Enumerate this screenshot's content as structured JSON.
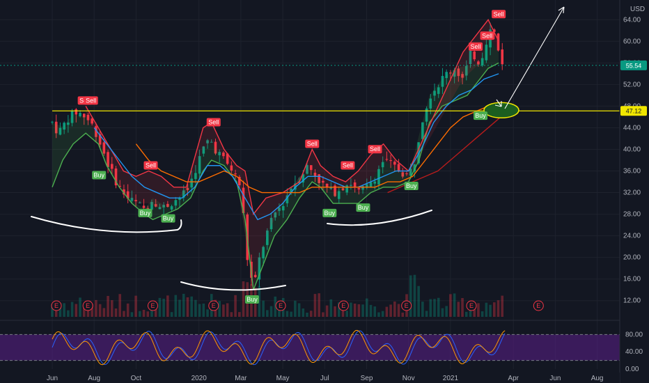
{
  "chart_data": {
    "type": "candlestick",
    "currency": "USD",
    "price_ticks": [
      12,
      16,
      20,
      24,
      28,
      32,
      36,
      40,
      44,
      48,
      52,
      56,
      60,
      64
    ],
    "price_tick_labels": [
      "12.00",
      "16.00",
      "20.00",
      "24.00",
      "28.00",
      "32.00",
      "36.00",
      "40.00",
      "44.00",
      "48.00",
      "52.00",
      "56.00",
      "60.00",
      "64.00"
    ],
    "ylim": [
      9,
      67
    ],
    "time_ticks": [
      "Jun",
      "Aug",
      "Oct",
      "2020",
      "Mar",
      "May",
      "Jul",
      "Sep",
      "Nov",
      "2021",
      "Apr",
      "Jun",
      "Aug"
    ],
    "time_ticks_month_index": [
      0,
      2,
      4,
      7,
      9,
      11,
      13,
      15,
      17,
      19,
      22,
      24,
      26
    ],
    "current_price": 55.54,
    "current_price_label": "55.54",
    "support_level": 47.12,
    "support_label": "47.12",
    "price_path": [
      [
        0,
        45
      ],
      [
        0.3,
        43
      ],
      [
        0.8,
        46
      ],
      [
        1.2,
        47
      ],
      [
        1.6,
        46
      ],
      [
        2,
        44
      ],
      [
        2.4,
        40
      ],
      [
        2.8,
        36
      ],
      [
        3.2,
        33
      ],
      [
        3.6,
        31
      ],
      [
        4,
        30
      ],
      [
        4.4,
        29
      ],
      [
        4.8,
        31
      ],
      [
        5.2,
        29
      ],
      [
        5.6,
        30
      ],
      [
        6,
        31
      ],
      [
        6.4,
        32
      ],
      [
        6.8,
        36
      ],
      [
        7.2,
        40
      ],
      [
        7.5,
        42
      ],
      [
        7.8,
        40
      ],
      [
        8.2,
        38
      ],
      [
        8.6,
        36
      ],
      [
        9,
        33
      ],
      [
        9.3,
        20
      ],
      [
        9.6,
        14
      ],
      [
        9.9,
        20
      ],
      [
        10.2,
        24
      ],
      [
        10.6,
        28
      ],
      [
        11,
        30
      ],
      [
        11.4,
        33
      ],
      [
        11.8,
        35
      ],
      [
        12.2,
        37
      ],
      [
        12.6,
        35
      ],
      [
        13,
        33
      ],
      [
        13.4,
        32
      ],
      [
        13.8,
        33
      ],
      [
        14.2,
        34
      ],
      [
        14.6,
        32
      ],
      [
        15,
        33
      ],
      [
        15.4,
        35
      ],
      [
        15.8,
        38
      ],
      [
        16.2,
        37
      ],
      [
        16.6,
        36
      ],
      [
        17,
        35
      ],
      [
        17.3,
        38
      ],
      [
        17.6,
        45
      ],
      [
        18,
        50
      ],
      [
        18.4,
        52
      ],
      [
        18.8,
        54
      ],
      [
        19.2,
        55
      ],
      [
        19.6,
        53
      ],
      [
        20,
        58
      ],
      [
        20.4,
        56
      ],
      [
        20.7,
        60
      ],
      [
        21,
        63
      ],
      [
        21.3,
        58
      ],
      [
        21.6,
        55
      ]
    ],
    "series": [
      {
        "name": "",
        "color": "#4caf50",
        "points": [
          [
            0,
            33
          ],
          [
            0.5,
            38
          ],
          [
            1,
            41
          ],
          [
            1.6,
            43
          ],
          [
            2.2,
            41
          ],
          [
            2.6,
            37
          ],
          [
            3.2,
            33
          ],
          [
            3.8,
            30
          ],
          [
            4.4,
            28
          ],
          [
            4.8,
            27
          ],
          [
            5.4,
            28
          ],
          [
            6,
            29
          ],
          [
            6.6,
            31
          ],
          [
            7.2,
            36
          ],
          [
            7.6,
            38
          ],
          [
            8.2,
            37
          ],
          [
            8.8,
            34
          ],
          [
            9.2,
            27
          ],
          [
            9.6,
            14
          ],
          [
            10,
            18
          ],
          [
            10.6,
            24
          ],
          [
            11.2,
            27
          ],
          [
            11.8,
            31
          ],
          [
            12.4,
            34
          ],
          [
            12.8,
            33
          ],
          [
            13.4,
            30
          ],
          [
            14,
            30
          ],
          [
            14.6,
            30
          ],
          [
            15.2,
            32
          ],
          [
            15.8,
            33
          ],
          [
            16.4,
            33
          ],
          [
            17,
            34
          ],
          [
            17.5,
            38
          ],
          [
            18,
            45
          ],
          [
            18.6,
            48
          ],
          [
            19.2,
            49
          ],
          [
            19.8,
            50
          ],
          [
            20.4,
            53
          ],
          [
            20.8,
            55
          ],
          [
            21.3,
            56
          ]
        ]
      },
      {
        "name": "",
        "color": "#f23645",
        "points": [
          [
            1.6,
            48
          ],
          [
            2.2,
            44
          ],
          [
            2.8,
            40
          ],
          [
            3.4,
            36
          ],
          [
            4,
            35
          ],
          [
            4.6,
            36
          ],
          [
            5.2,
            35
          ],
          [
            5.8,
            33
          ],
          [
            6.4,
            33
          ],
          [
            7.2,
            44
          ],
          [
            7.6,
            45
          ],
          [
            8.2,
            40
          ],
          [
            8.8,
            37
          ],
          [
            9.2,
            36
          ],
          [
            9.6,
            28
          ],
          [
            10.2,
            31
          ],
          [
            11,
            32
          ],
          [
            11.8,
            34
          ],
          [
            12.4,
            40
          ],
          [
            12.8,
            37
          ],
          [
            13.4,
            35
          ],
          [
            14,
            34
          ],
          [
            14.6,
            36
          ],
          [
            15.2,
            39
          ],
          [
            15.8,
            41
          ],
          [
            16.4,
            38
          ],
          [
            17,
            36
          ],
          [
            19.6,
            58
          ],
          [
            20.4,
            62
          ],
          [
            20.8,
            64
          ],
          [
            21.3,
            60
          ]
        ]
      },
      {
        "name": "",
        "color": "#2196f3",
        "points": [
          [
            2,
            44
          ],
          [
            2.6,
            41
          ],
          [
            3.2,
            38
          ],
          [
            3.8,
            35
          ],
          [
            4.4,
            33
          ],
          [
            5,
            32
          ],
          [
            5.6,
            31
          ],
          [
            6.2,
            31
          ],
          [
            6.8,
            33
          ],
          [
            7.4,
            37
          ],
          [
            8,
            37
          ],
          [
            8.6,
            35
          ],
          [
            9.2,
            31
          ],
          [
            9.8,
            27
          ],
          [
            10.4,
            28
          ],
          [
            11,
            30
          ],
          [
            11.6,
            33
          ],
          [
            12.2,
            35
          ],
          [
            12.8,
            35
          ],
          [
            13.4,
            34
          ],
          [
            14,
            33
          ],
          [
            14.6,
            33
          ],
          [
            15.2,
            34
          ],
          [
            15.8,
            35
          ],
          [
            16.4,
            36
          ],
          [
            17,
            36
          ],
          [
            17.6,
            40
          ],
          [
            18.2,
            45
          ],
          [
            18.8,
            48
          ],
          [
            19.4,
            50
          ],
          [
            20,
            51
          ],
          [
            20.6,
            53
          ],
          [
            21.3,
            54
          ]
        ]
      },
      {
        "name": "",
        "color": "#ff6d00",
        "points": [
          [
            4,
            41
          ],
          [
            4.6,
            38
          ],
          [
            5.2,
            36
          ],
          [
            5.8,
            35
          ],
          [
            6.4,
            34
          ],
          [
            7,
            34
          ],
          [
            7.6,
            35
          ],
          [
            8.2,
            36
          ],
          [
            8.8,
            35
          ],
          [
            9.4,
            33
          ],
          [
            10,
            32
          ],
          [
            10.6,
            32
          ],
          [
            11.2,
            32
          ],
          [
            11.8,
            32
          ],
          [
            12.4,
            33
          ],
          [
            13,
            33
          ],
          [
            13.6,
            33
          ],
          [
            14.2,
            33
          ],
          [
            14.8,
            33
          ],
          [
            15.4,
            33
          ],
          [
            16,
            34
          ],
          [
            16.6,
            34
          ],
          [
            17.2,
            35
          ],
          [
            17.8,
            38
          ],
          [
            18.4,
            41
          ],
          [
            19,
            44
          ],
          [
            19.6,
            46
          ],
          [
            20.2,
            47
          ],
          [
            20.8,
            48
          ],
          [
            21.4,
            48
          ]
        ]
      },
      {
        "name": "",
        "color": "#b71c1c",
        "points": [
          [
            16,
            32
          ],
          [
            16.6,
            33
          ],
          [
            17.2,
            34
          ],
          [
            17.8,
            35
          ],
          [
            18.4,
            36
          ],
          [
            19,
            38
          ],
          [
            19.6,
            40
          ],
          [
            20.2,
            42
          ],
          [
            20.8,
            44
          ],
          [
            21.4,
            46
          ]
        ]
      }
    ],
    "buy_signals": [
      [
        2.2,
        36
      ],
      [
        4.4,
        29
      ],
      [
        5.5,
        28
      ],
      [
        9.5,
        13
      ],
      [
        13.2,
        29
      ],
      [
        14.8,
        30
      ],
      [
        17.1,
        34
      ],
      [
        20.4,
        47
      ]
    ],
    "sell_signals": [
      [
        1.55,
        48
      ],
      [
        1.85,
        48
      ],
      [
        4.7,
        36
      ],
      [
        7.7,
        44
      ],
      [
        12.4,
        40
      ],
      [
        14.1,
        36
      ],
      [
        15.4,
        39
      ],
      [
        20.2,
        58
      ],
      [
        20.75,
        60
      ],
      [
        21.3,
        64
      ]
    ],
    "buy_label": "Buy",
    "sell_label": "Sell",
    "earnings_months": [
      0.2,
      1.7,
      4.8,
      7.7,
      10.9,
      13.9,
      16.9,
      20.0,
      23.2
    ],
    "earnings_label": "E",
    "oscillator": {
      "ticks": [
        0,
        40,
        80
      ],
      "tick_labels": [
        "0.00",
        "40.00",
        "80.00"
      ],
      "band": [
        20,
        80
      ],
      "line_colors": [
        "#2962ff",
        "#ff9800"
      ]
    },
    "annotation_colors": {
      "support_line": "#f0e600",
      "ellipse_fill": "#1b5e20",
      "ellipse_stroke": "#f0e600",
      "curves": "#ffffff",
      "arrows": "#ffffff",
      "up": "#089981",
      "down": "#f23645",
      "osc_band": "#5b1f8a"
    }
  }
}
